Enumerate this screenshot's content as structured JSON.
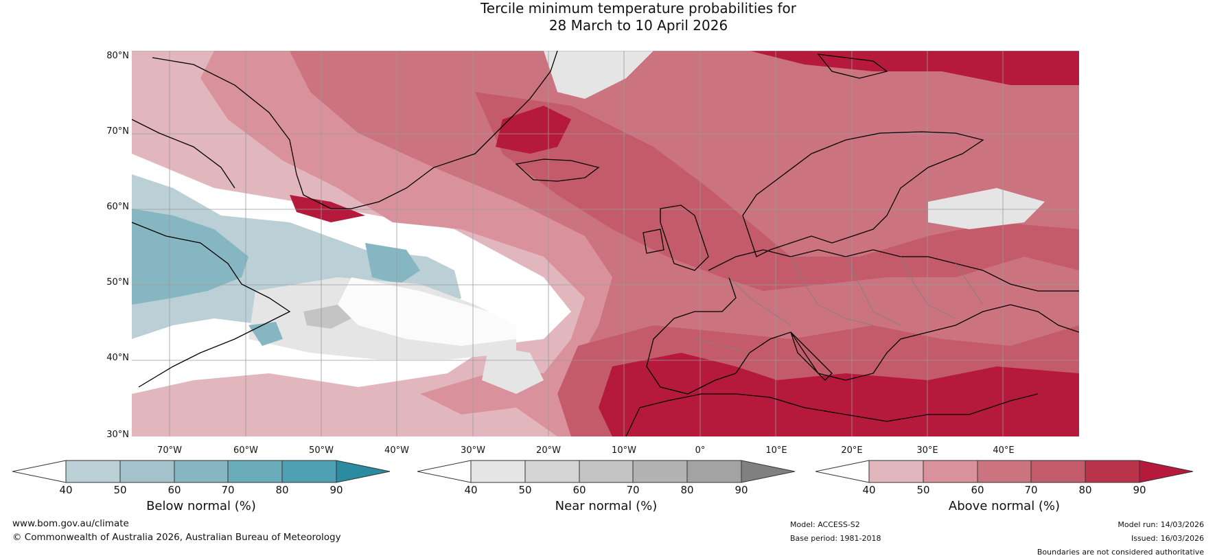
{
  "title": {
    "line1": "Tercile minimum temperature probabilities for",
    "line2": "28 March to 10 April 2026"
  },
  "axes": {
    "lat_labels": [
      "80°N",
      "70°N",
      "60°N",
      "50°N",
      "40°N",
      "30°N"
    ],
    "lat_values": [
      80,
      70,
      60,
      50,
      40,
      30
    ],
    "lon_labels": [
      "70°W",
      "60°W",
      "50°W",
      "40°W",
      "30°W",
      "20°W",
      "10°W",
      "0°",
      "10°E",
      "20°E",
      "30°E",
      "40°E"
    ],
    "lon_values": [
      -70,
      -60,
      -50,
      -40,
      -30,
      -20,
      -10,
      0,
      10,
      20,
      30,
      40
    ],
    "lon_range": [
      -75,
      50
    ],
    "lat_range": [
      30,
      81
    ]
  },
  "legends": [
    {
      "caption": "Below normal (%)",
      "ticks": [
        "40",
        "50",
        "60",
        "70",
        "80",
        "90"
      ],
      "colors": [
        "#ffffff",
        "#bacfd6",
        "#a4c2cb",
        "#86b6c1",
        "#6aacb9",
        "#4fa0b2",
        "#2b8ba1"
      ]
    },
    {
      "caption": "Near normal (%)",
      "ticks": [
        "40",
        "50",
        "60",
        "70",
        "80",
        "90"
      ],
      "colors": [
        "#ffffff",
        "#e5e5e5",
        "#d4d4d4",
        "#c4c4c4",
        "#b3b3b3",
        "#a3a3a3",
        "#808080"
      ]
    },
    {
      "caption": "Above normal (%)",
      "ticks": [
        "40",
        "50",
        "60",
        "70",
        "80",
        "90"
      ],
      "colors": [
        "#ffffff",
        "#e2b6bd",
        "#d9929c",
        "#cc7380",
        "#c35b6a",
        "#b9334b",
        "#b5193c"
      ]
    }
  ],
  "footer": {
    "url": "www.bom.gov.au/climate",
    "copyright": "© Commonwealth of Australia 2026, Australian Bureau of Meteorology",
    "model": "Model: ACCESS-S2",
    "base_period": "Base period: 1981-2018",
    "model_run": "Model run: 14/03/2026",
    "issued": "Issued: 16/03/2026",
    "disclaimer": "Boundaries are not considered authoritative"
  },
  "colors": {
    "ocean_white": "#ffffff",
    "above_light": "#e2b6bd",
    "above_mid": "#d9929c",
    "above_strong": "#cc7380",
    "above_darker": "#c35b6a",
    "above_darkest": "#b5193c",
    "below_light": "#bacfd6",
    "below_mid": "#86b6c1",
    "near_light": "#e5e5e5",
    "near_mid": "#c4c4c4",
    "coast": "#000000",
    "border": "#808080",
    "grid": "#9a9a9a"
  }
}
